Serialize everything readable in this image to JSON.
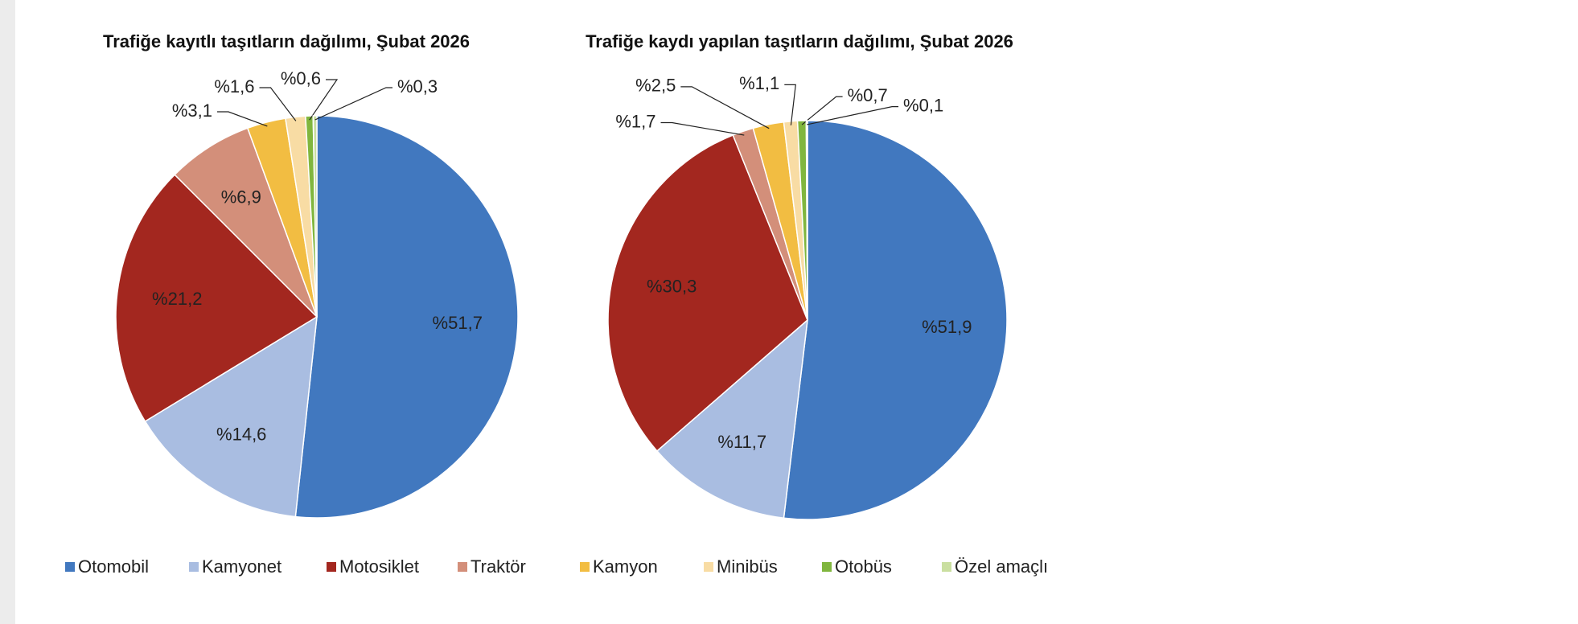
{
  "chart_data": [
    {
      "type": "pie",
      "title": "Trafiğe kayıtlı taşıtların dağılımı, Şubat 2026",
      "categories": [
        "Otomobil",
        "Kamyonet",
        "Motosiklet",
        "Traktör",
        "Kamyon",
        "Minibüs",
        "Otobüs",
        "Özel amaçlı"
      ],
      "values": [
        51.7,
        14.6,
        21.2,
        6.9,
        3.1,
        1.6,
        0.6,
        0.3
      ],
      "value_labels": [
        "%51,7",
        "%14,6",
        "%21,2",
        "%6,9",
        "%3,1",
        "%1,6",
        "%0,6",
        "%0,3"
      ],
      "colors": [
        "#4178bf",
        "#a9bde1",
        "#a3271f",
        "#d38f7a",
        "#f2bd42",
        "#f8dca4",
        "#80b63e",
        "#cadfa0"
      ]
    },
    {
      "type": "pie",
      "title": "Trafiğe kaydı yapılan taşıtların dağılımı, Şubat 2026",
      "categories": [
        "Otomobil",
        "Kamyonet",
        "Motosiklet",
        "Traktör",
        "Kamyon",
        "Minibüs",
        "Otobüs",
        "Özel amaçlı"
      ],
      "values": [
        51.9,
        11.7,
        30.3,
        1.7,
        2.5,
        1.1,
        0.7,
        0.1
      ],
      "value_labels": [
        "%51,9",
        "%11,7",
        "%30,3",
        "%1,7",
        "%2,5",
        "%1,1",
        "%0,7",
        "%0,1"
      ],
      "colors": [
        "#4178bf",
        "#a9bde1",
        "#a3271f",
        "#d38f7a",
        "#f2bd42",
        "#f8dca4",
        "#80b63e",
        "#cadfa0"
      ]
    }
  ]
}
